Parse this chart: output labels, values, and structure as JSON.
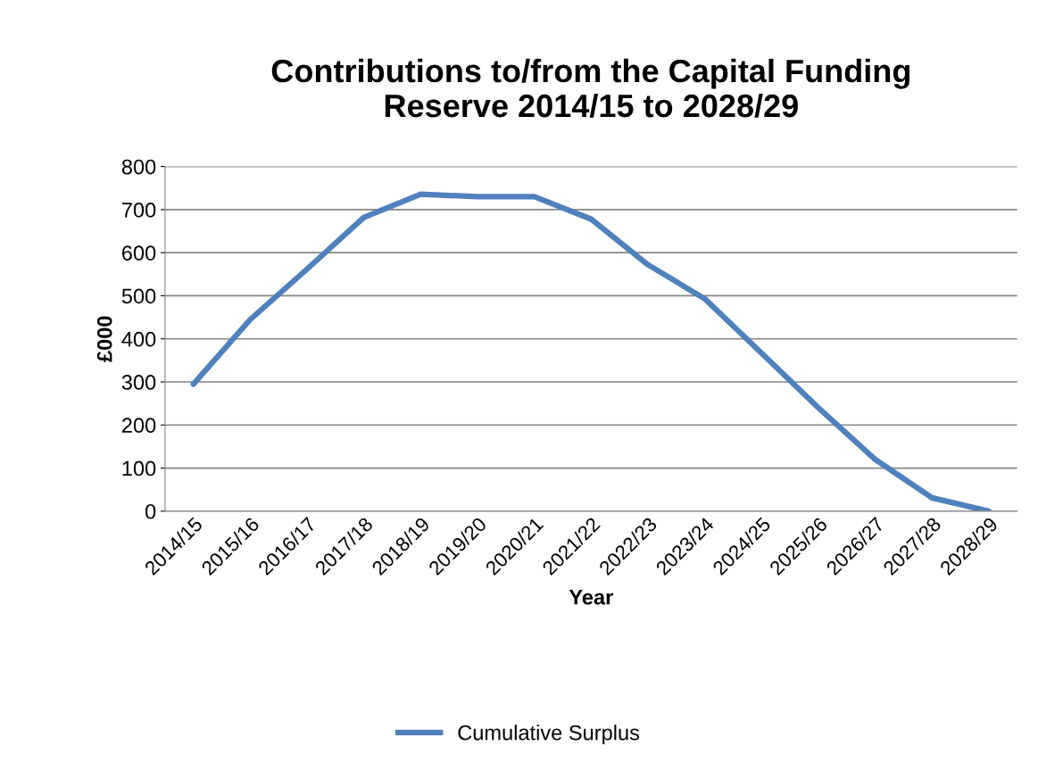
{
  "chart_data": {
    "type": "line",
    "title": "Contributions to/from the Capital Funding\nReserve 2014/15 to 2028/29",
    "xlabel": "Year",
    "ylabel": "£000",
    "categories": [
      "2014/15",
      "2015/16",
      "2016/17",
      "2017/18",
      "2018/19",
      "2019/20",
      "2020/21",
      "2021/22",
      "2022/23",
      "2023/24",
      "2024/25",
      "2025/26",
      "2026/27",
      "2027/28",
      "2028/29"
    ],
    "series": [
      {
        "name": "Cumulative Surplus",
        "color": "#4f81bd",
        "values": [
          295,
          445,
          562,
          682,
          736,
          730,
          730,
          678,
          572,
          493,
          367,
          240,
          120,
          31,
          0
        ]
      }
    ],
    "ylim": [
      0,
      800
    ],
    "yticks": [
      0,
      100,
      200,
      300,
      400,
      500,
      600,
      700,
      800
    ],
    "grid": "y",
    "legend": "bottom",
    "marker": "none",
    "line_style": "solid"
  }
}
